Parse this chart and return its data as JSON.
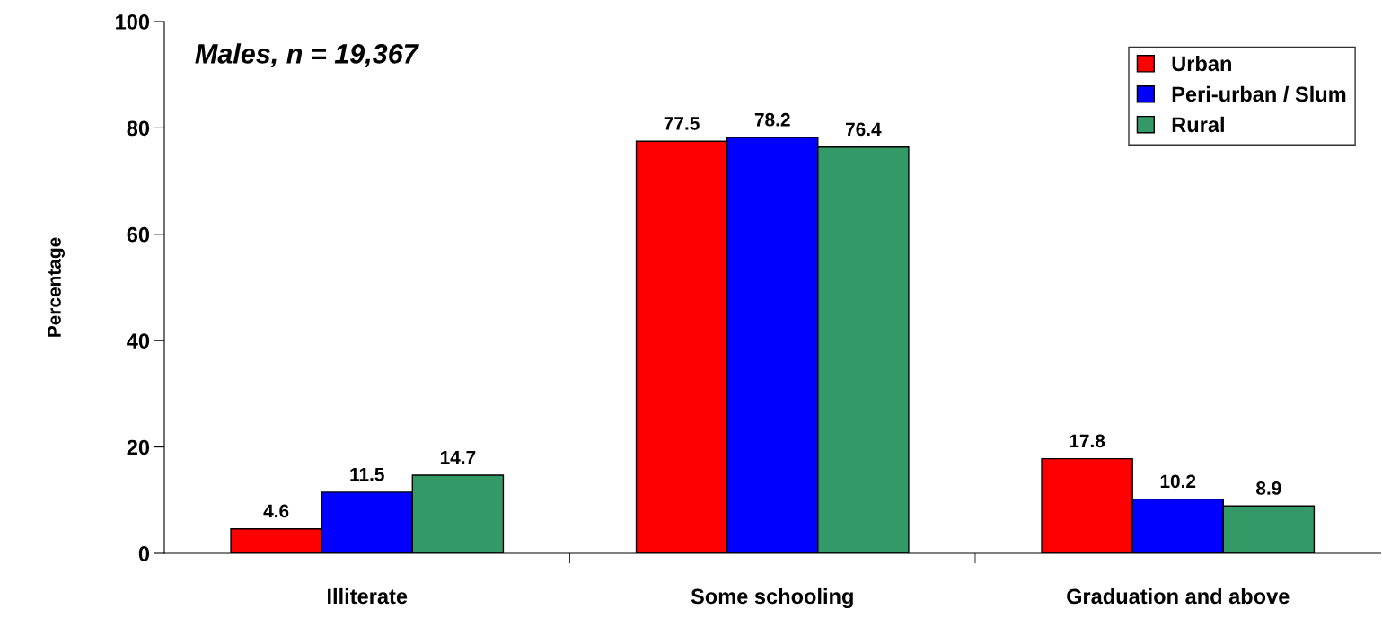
{
  "chart_data": {
    "type": "bar",
    "ylabel": "Percentage",
    "categories": [
      "Illiterate",
      "Some schooling",
      "Graduation and above"
    ],
    "series": [
      {
        "name": "Urban",
        "color": "#ff0000",
        "values": [
          4.6,
          77.5,
          17.8
        ]
      },
      {
        "name": "Peri-urban / Slum",
        "color": "#0000ff",
        "values": [
          11.5,
          78.2,
          10.2
        ]
      },
      {
        "name": "Rural",
        "color": "#339966",
        "values": [
          14.7,
          76.4,
          8.9
        ]
      }
    ],
    "ylim": [
      0,
      100
    ],
    "yticks": [
      0,
      20,
      40,
      60,
      80,
      100
    ],
    "grid": false,
    "legend": "top right",
    "data_labels": true,
    "annotations": [
      "Males, n = 19,367"
    ]
  }
}
